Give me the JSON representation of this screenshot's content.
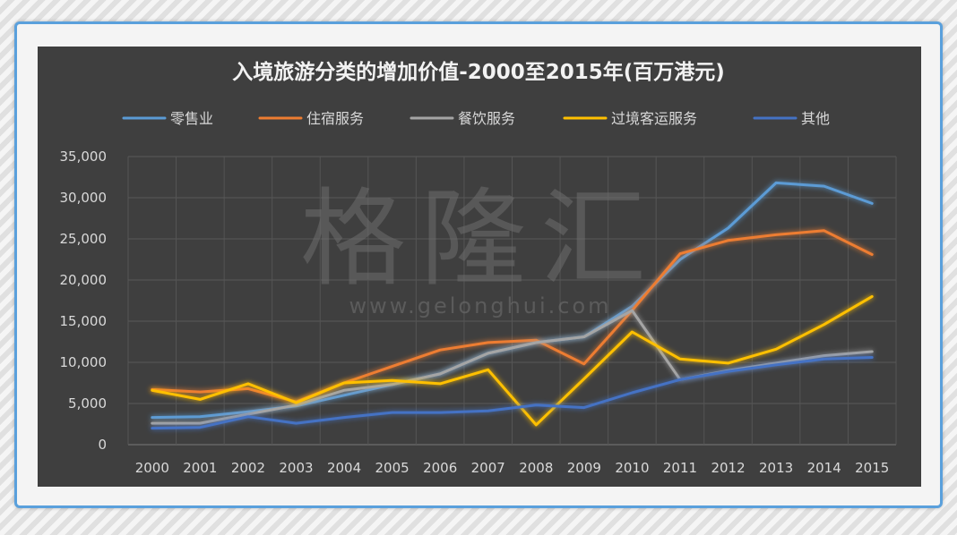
{
  "chart_data": {
    "type": "line",
    "title": "入境旅游分类的增加价值-2000至2015年(百万港元)",
    "categories": [
      "2000",
      "2001",
      "2002",
      "2003",
      "2004",
      "2005",
      "2006",
      "2007",
      "2008",
      "2009",
      "2010",
      "2011",
      "2012",
      "2013",
      "2014",
      "2015"
    ],
    "ylim": [
      0,
      35000
    ],
    "yticks": [
      "0",
      "5,000",
      "10,000",
      "15,000",
      "20,000",
      "25,000",
      "30,000",
      "35,000"
    ],
    "ytick_values": [
      0,
      5000,
      10000,
      15000,
      20000,
      25000,
      30000,
      35000
    ],
    "grid": true,
    "legend_position": "top",
    "series": [
      {
        "name": "零售业",
        "color": "#5b9bd5",
        "values": [
          3300,
          3400,
          4000,
          4700,
          6000,
          7300,
          8600,
          11100,
          12400,
          13100,
          16800,
          22500,
          26300,
          31800,
          31400,
          29300
        ]
      },
      {
        "name": "住宿服务",
        "color": "#ed7d31",
        "values": [
          6700,
          6400,
          6800,
          5200,
          7500,
          9500,
          11500,
          12400,
          12700,
          9800,
          16300,
          23200,
          24800,
          25500,
          26000,
          23100
        ]
      },
      {
        "name": "餐饮服务",
        "color": "#a5a5a5",
        "values": [
          2600,
          2600,
          3700,
          4800,
          6600,
          7300,
          8600,
          11100,
          12400,
          13100,
          16300,
          7900,
          9000,
          9900,
          10800,
          11300
        ]
      },
      {
        "name": "过境客运服务",
        "color": "#ffc000",
        "values": [
          6600,
          5500,
          7400,
          5100,
          7500,
          7800,
          7400,
          9100,
          2400,
          8000,
          13700,
          10400,
          9900,
          11600,
          14600,
          18000
        ]
      },
      {
        "name": "其他",
        "color": "#4472c4",
        "values": [
          2000,
          2100,
          3400,
          2600,
          3300,
          3900,
          3900,
          4100,
          4800,
          4500,
          6300,
          7900,
          8900,
          9700,
          10400,
          10600
        ]
      }
    ]
  },
  "watermark": {
    "logo": "格隆汇",
    "url": "www.gelonghui.com"
  }
}
